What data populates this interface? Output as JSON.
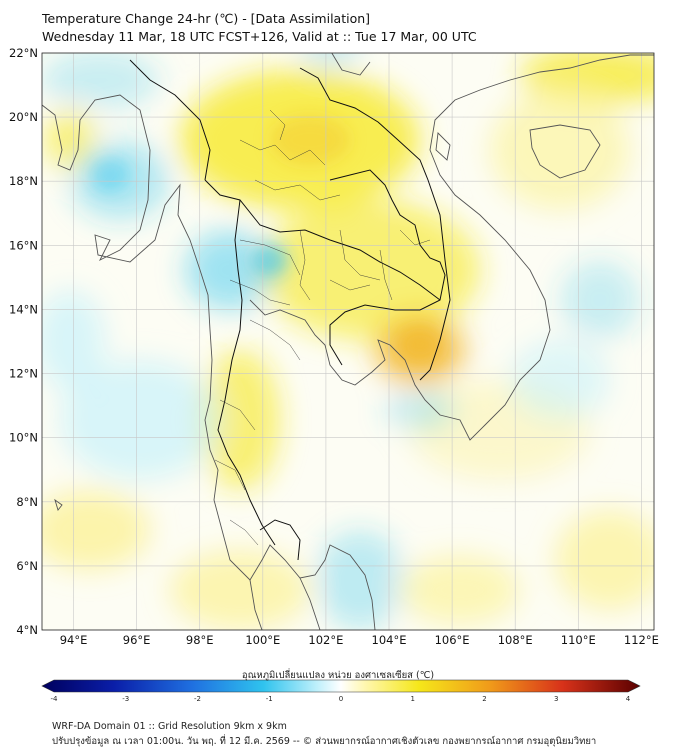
{
  "title": {
    "line1": "Temperature Change 24-hr (℃) - [Data Assimilation]",
    "line2": "Wednesday 11 Mar, 18 UTC FCST+126, Valid at :: Tue 17 Mar, 00 UTC"
  },
  "map": {
    "lat_labels": [
      "22°N",
      "20°N",
      "18°N",
      "16°N",
      "14°N",
      "12°N",
      "10°N",
      "8°N",
      "6°N",
      "4°N"
    ],
    "lon_labels": [
      "94°E",
      "96°E",
      "98°E",
      "100°E",
      "102°E",
      "104°E",
      "106°E",
      "108°E",
      "110°E",
      "112°E"
    ],
    "lat_range": [
      4,
      22
    ],
    "lon_range": [
      93,
      112.4
    ]
  },
  "colorbar": {
    "title": "อุณหภูมิเปลี่ยนแปลง หน่วย องศาเซลเซียส (℃)",
    "ticks": [
      "-4",
      "-3",
      "-2",
      "-1",
      "0",
      "1",
      "2",
      "3",
      "4"
    ],
    "range": [
      -4,
      4
    ]
  },
  "footer": {
    "line1": "WRF-DA Domain 01 :: Grid Resolution 9km x 9km",
    "line2": "ปรับปรุงข้อมูล ณ เวลา 01:00น. วัน พฤ. ที่ 12 มี.ค. 2569 -- © ส่วนพยากรณ์อากาศเชิงตัวเลข กองพยากรณ์อากาศ กรมอุตุนิยมวิทยา"
  },
  "colors": {
    "neutral": "#ffffff",
    "warm": "#f5e71a",
    "warm_strong": "#f2c02a",
    "cool": "#2fc3ee",
    "cool_light": "#bff0fb",
    "coastline": "#555555",
    "border": "#111111"
  }
}
